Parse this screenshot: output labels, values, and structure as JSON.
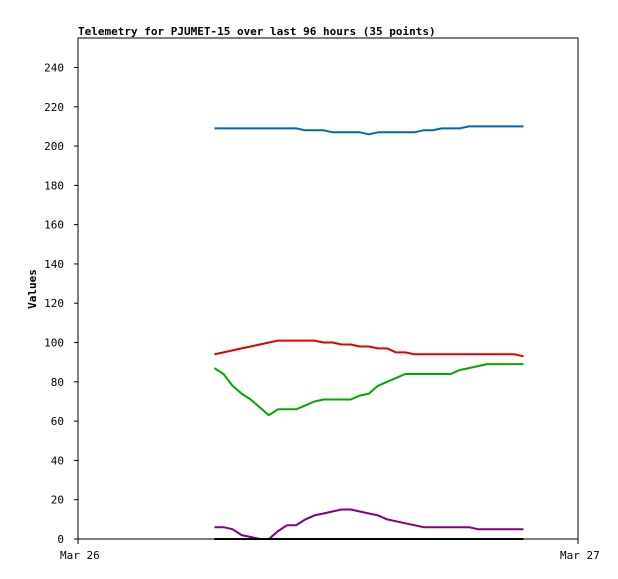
{
  "chart_data": {
    "type": "line",
    "title": "Telemetry for PJUMET-15 over last 96 hours (35 points)",
    "xlabel": "",
    "ylabel": "Values",
    "ylim": [
      0,
      255
    ],
    "yticks": [
      0,
      20,
      40,
      60,
      80,
      100,
      120,
      140,
      160,
      180,
      200,
      220,
      240
    ],
    "xticks": [
      "Mar 26",
      "Mar 27"
    ],
    "grid": false,
    "legend": "none",
    "x": [
      0,
      1,
      2,
      3,
      4,
      5,
      6,
      7,
      8,
      9,
      10,
      11,
      12,
      13,
      14,
      15,
      16,
      17,
      18,
      19,
      20,
      21,
      22,
      23,
      24,
      25,
      26,
      27,
      28,
      29,
      30,
      31,
      32,
      33,
      34
    ],
    "series": [
      {
        "color": "#0066b3",
        "values": [
          209,
          209,
          209,
          209,
          209,
          209,
          209,
          209,
          209,
          209,
          208,
          208,
          208,
          207,
          207,
          207,
          207,
          206,
          207,
          207,
          207,
          207,
          207,
          208,
          208,
          209,
          209,
          209,
          210,
          210,
          210,
          210,
          210,
          210,
          210
        ]
      },
      {
        "color": "#e00000",
        "values": [
          94,
          95,
          96,
          97,
          98,
          99,
          100,
          101,
          101,
          101,
          101,
          101,
          100,
          100,
          99,
          99,
          98,
          98,
          97,
          97,
          95,
          95,
          94,
          94,
          94,
          94,
          94,
          94,
          94,
          94,
          94,
          94,
          94,
          94,
          93
        ]
      },
      {
        "color": "#00a800",
        "values": [
          87,
          84,
          78,
          74,
          71,
          67,
          63,
          66,
          66,
          66,
          68,
          70,
          71,
          71,
          71,
          71,
          73,
          74,
          78,
          80,
          82,
          84,
          84,
          84,
          84,
          84,
          84,
          86,
          87,
          88,
          89,
          89,
          89,
          89,
          89
        ]
      },
      {
        "color": "#800080",
        "values": [
          6,
          6,
          5,
          2,
          1,
          0,
          0,
          4,
          7,
          7,
          10,
          12,
          13,
          14,
          15,
          15,
          14,
          13,
          12,
          10,
          9,
          8,
          7,
          6,
          6,
          6,
          6,
          6,
          6,
          5,
          5,
          5,
          5,
          5,
          5
        ]
      },
      {
        "color": "#000000",
        "values": [
          0,
          0,
          0,
          0,
          0,
          0,
          0,
          0,
          0,
          0,
          0,
          0,
          0,
          0,
          0,
          0,
          0,
          0,
          0,
          0,
          0,
          0,
          0,
          0,
          0,
          0,
          0,
          0,
          0,
          0,
          0,
          0,
          0,
          0,
          0
        ]
      }
    ]
  }
}
